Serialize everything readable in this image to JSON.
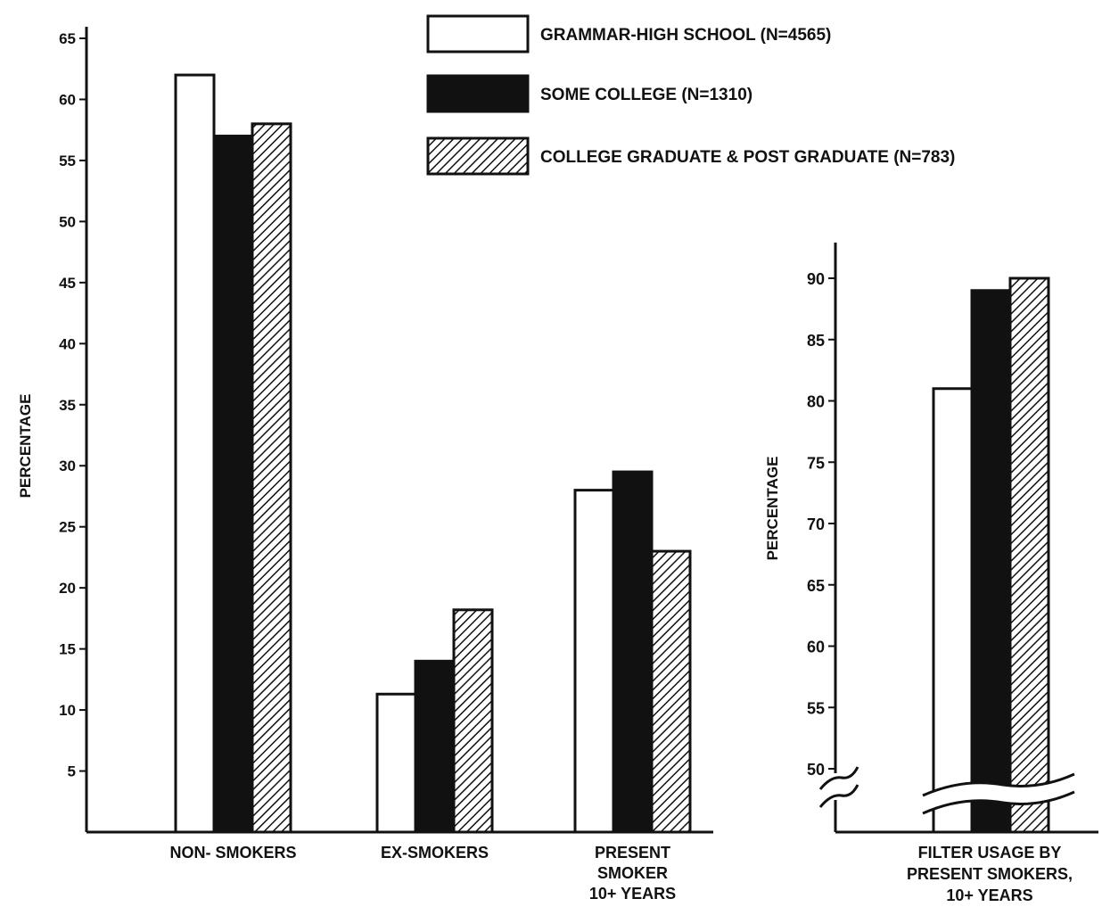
{
  "chart_data": [
    {
      "type": "bar",
      "ylabel": "PERCENTAGE",
      "ylim": [
        0,
        65
      ],
      "yticks": [
        5,
        10,
        15,
        20,
        25,
        30,
        35,
        40,
        45,
        50,
        55,
        60,
        65
      ],
      "categories": [
        "NON- SMOKERS",
        "EX-SMOKERS",
        "PRESENT\nSMOKER\n10+ YEARS"
      ],
      "series": [
        {
          "name": "GRAMMAR-HIGH SCHOOL (N=4565)",
          "values": [
            62,
            11.3,
            28
          ]
        },
        {
          "name": "SOME COLLEGE (N=1310)",
          "values": [
            57,
            14,
            29.5
          ]
        },
        {
          "name": "COLLEGE GRADUATE & POST GRADUATE (N=783)",
          "values": [
            58,
            18.2,
            23
          ]
        }
      ],
      "legend": "top-right"
    },
    {
      "type": "bar",
      "ylabel": "PERCENTAGE",
      "ylim": [
        50,
        90
      ],
      "yticks": [
        50,
        55,
        60,
        65,
        70,
        75,
        80,
        85,
        90
      ],
      "axis_break": true,
      "categories": [
        "FILTER USAGE BY\nPRESENT SMOKERS,\n10+ YEARS"
      ],
      "series": [
        {
          "name": "GRAMMAR-HIGH SCHOOL (N=4565)",
          "values": [
            81
          ]
        },
        {
          "name": "SOME COLLEGE (N=1310)",
          "values": [
            89
          ]
        },
        {
          "name": "COLLEGE GRADUATE & POST GRADUATE (N=783)",
          "values": [
            90
          ]
        }
      ]
    }
  ],
  "colors": {
    "ink": "#111111",
    "paper": "#ffffff"
  }
}
